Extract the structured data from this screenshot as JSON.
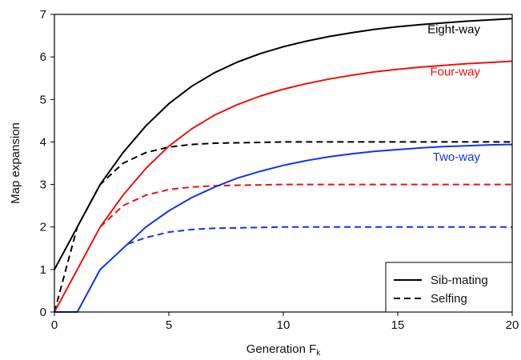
{
  "chart_data": {
    "type": "line",
    "title": "",
    "xlabel": "Generation F",
    "xlabel_subscript": "k",
    "ylabel": "Map expansion",
    "xlim": [
      0,
      20
    ],
    "ylim": [
      0,
      7
    ],
    "xticks": [
      0,
      5,
      10,
      15,
      20
    ],
    "yticks": [
      0,
      1,
      2,
      3,
      4,
      5,
      6,
      7
    ],
    "grid": false,
    "series": [
      {
        "name": "Eight-way",
        "mating": "Sib-mating",
        "color": "#000000",
        "style": "solid",
        "x": [
          0,
          1,
          2,
          3,
          4,
          5,
          6,
          7,
          8,
          9,
          10,
          11,
          12,
          13,
          14,
          15,
          16,
          17,
          18,
          19,
          20
        ],
        "y": [
          1.0,
          2.0,
          3.0,
          3.75,
          4.38,
          4.9,
          5.31,
          5.63,
          5.88,
          6.08,
          6.24,
          6.37,
          6.48,
          6.57,
          6.65,
          6.71,
          6.76,
          6.8,
          6.84,
          6.87,
          6.9
        ]
      },
      {
        "name": "Eight-way",
        "mating": "Selfing",
        "color": "#000000",
        "style": "dashed",
        "x": [
          0,
          1,
          2,
          3,
          4,
          5,
          6,
          7,
          8,
          10,
          12,
          14,
          16,
          18,
          20
        ],
        "y": [
          0.0,
          2.0,
          3.0,
          3.5,
          3.75,
          3.88,
          3.94,
          3.97,
          3.98,
          4.0,
          4.0,
          4.0,
          4.0,
          4.0,
          4.0
        ]
      },
      {
        "name": "Four-way",
        "mating": "Sib-mating",
        "color": "#ee1111",
        "style": "solid",
        "x": [
          0,
          1,
          2,
          3,
          4,
          5,
          6,
          7,
          8,
          9,
          10,
          11,
          12,
          13,
          14,
          15,
          16,
          17,
          18,
          19,
          20
        ],
        "y": [
          0.0,
          1.0,
          2.0,
          2.75,
          3.38,
          3.9,
          4.31,
          4.63,
          4.88,
          5.08,
          5.24,
          5.37,
          5.48,
          5.57,
          5.65,
          5.71,
          5.76,
          5.8,
          5.84,
          5.87,
          5.9
        ]
      },
      {
        "name": "Four-way",
        "mating": "Selfing",
        "color": "#ee1111",
        "style": "dashed",
        "x": [
          2,
          3,
          4,
          5,
          6,
          7,
          8,
          10,
          12,
          14,
          16,
          18,
          20
        ],
        "y": [
          2.0,
          2.5,
          2.75,
          2.88,
          2.94,
          2.97,
          2.98,
          3.0,
          3.0,
          3.0,
          3.0,
          3.0,
          3.0
        ]
      },
      {
        "name": "Two-way",
        "mating": "Sib-mating",
        "color": "#1133ee",
        "style": "solid",
        "x": [
          0,
          1,
          2,
          3,
          4,
          5,
          6,
          7,
          8,
          9,
          10,
          11,
          12,
          13,
          14,
          15,
          16,
          17,
          18,
          19,
          20
        ],
        "y": [
          0.0,
          0.0,
          1.0,
          1.5,
          2.0,
          2.38,
          2.69,
          2.94,
          3.15,
          3.31,
          3.45,
          3.56,
          3.65,
          3.72,
          3.78,
          3.82,
          3.86,
          3.89,
          3.91,
          3.93,
          3.94
        ]
      },
      {
        "name": "Two-way",
        "mating": "Selfing",
        "color": "#1133ee",
        "style": "dashed",
        "x": [
          3.2,
          4,
          5,
          6,
          7,
          8,
          10,
          12,
          14,
          16,
          18,
          20
        ],
        "y": [
          1.6,
          1.75,
          1.88,
          1.94,
          1.97,
          1.98,
          2.0,
          2.0,
          2.0,
          2.0,
          2.0,
          2.0
        ]
      }
    ],
    "annotations": [
      {
        "text": "Eight-way",
        "color": "#000000",
        "x": 18.6,
        "y": 6.65
      },
      {
        "text": "Four-way",
        "color": "#ee1111",
        "x": 18.6,
        "y": 5.65
      },
      {
        "text": "Two-way",
        "color": "#1133ee",
        "x": 18.6,
        "y": 3.65
      }
    ],
    "legend": {
      "placement": "bottom-right",
      "entries": [
        {
          "label": "Sib-mating",
          "style": "solid"
        },
        {
          "label": "Selfing",
          "style": "dashed"
        }
      ]
    }
  }
}
